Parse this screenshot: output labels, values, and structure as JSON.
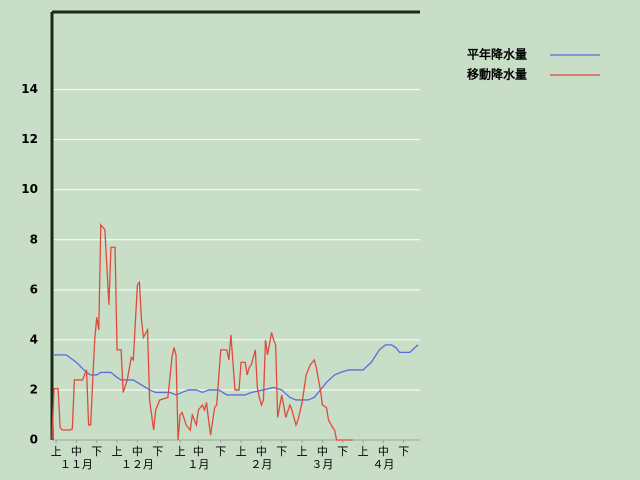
{
  "chart_data": {
    "type": "line",
    "series": [
      {
        "name": "平年降水量",
        "color": "#5a6be0",
        "x": [
          1,
          7,
          12,
          17,
          19,
          22,
          24,
          29,
          32,
          34,
          40,
          44,
          48,
          51,
          58,
          61,
          64,
          67,
          71,
          74,
          77,
          82,
          86,
          95,
          98,
          104,
          109,
          113,
          117,
          120,
          126,
          129,
          132,
          135,
          139,
          142,
          146,
          153,
          157,
          161,
          164,
          167,
          169,
          171,
          176,
          180
        ],
        "values": [
          3.4,
          3.4,
          3.1,
          2.7,
          2.6,
          2.6,
          2.7,
          2.7,
          2.5,
          2.4,
          2.4,
          2.2,
          2.0,
          1.9,
          1.9,
          1.8,
          1.9,
          2.0,
          2.0,
          1.9,
          2.0,
          2.0,
          1.8,
          1.8,
          1.9,
          2.0,
          2.1,
          2.0,
          1.7,
          1.6,
          1.6,
          1.7,
          2.0,
          2.3,
          2.6,
          2.7,
          2.8,
          2.8,
          3.1,
          3.6,
          3.8,
          3.8,
          3.7,
          3.5,
          3.5,
          3.8
        ]
      },
      {
        "name": "移動降水量",
        "color": "#e04a3c",
        "x": [
          0,
          1,
          3,
          4,
          5,
          9,
          10,
          11,
          15,
          17,
          18,
          19,
          21,
          22,
          23,
          24,
          26,
          28,
          29,
          31,
          32,
          34,
          35,
          37,
          39,
          40,
          42,
          43,
          44,
          45,
          47,
          48,
          50,
          51,
          53,
          57,
          59,
          60,
          61,
          62,
          63,
          64,
          66,
          68,
          69,
          71,
          72,
          74,
          75,
          76,
          77,
          78,
          80,
          81,
          83,
          86,
          87,
          88,
          90,
          92,
          93,
          95,
          96,
          97,
          98,
          100,
          101,
          102,
          103,
          104,
          105,
          106,
          108,
          109,
          110,
          111,
          113,
          115,
          117,
          118,
          120,
          121,
          123,
          125,
          127,
          129,
          130,
          132,
          133,
          135,
          136,
          138,
          139,
          140,
          148
        ],
        "values": [
          0,
          2.05,
          2.05,
          0.5,
          0.4,
          0.4,
          0.45,
          2.4,
          2.4,
          2.8,
          0.6,
          0.6,
          4.0,
          4.9,
          4.4,
          8.6,
          8.4,
          5.4,
          7.7,
          7.7,
          3.6,
          3.6,
          1.9,
          2.4,
          3.3,
          3.2,
          6.2,
          6.3,
          4.8,
          4.1,
          4.4,
          1.6,
          0.4,
          1.2,
          1.6,
          1.7,
          3.3,
          3.7,
          3.4,
          0,
          1.0,
          1.1,
          0.6,
          0.4,
          1.0,
          0.6,
          1.2,
          1.4,
          1.2,
          1.5,
          0.8,
          0.2,
          1.3,
          1.4,
          3.6,
          3.6,
          3.2,
          4.2,
          2.0,
          2.0,
          3.1,
          3.1,
          2.6,
          2.9,
          3.0,
          3.6,
          2.1,
          1.7,
          1.4,
          1.6,
          4.0,
          3.4,
          4.3,
          4.0,
          3.8,
          0.9,
          1.8,
          0.9,
          1.4,
          1.2,
          0.6,
          0.8,
          1.5,
          2.6,
          3.0,
          3.2,
          2.9,
          2.0,
          1.4,
          1.3,
          0.8,
          0.5,
          0.4,
          0,
          0
        ]
      }
    ],
    "xlim": [
      0,
      181
    ],
    "xticks": [
      {
        "value": 2,
        "label": "上"
      },
      {
        "value": 12,
        "label": "中"
      },
      {
        "value": 22,
        "label": "下"
      },
      {
        "value": 32,
        "label": "上"
      },
      {
        "value": 42,
        "label": "中"
      },
      {
        "value": 52,
        "label": "下"
      },
      {
        "value": 63,
        "label": "上"
      },
      {
        "value": 72,
        "label": "中"
      },
      {
        "value": 83,
        "label": "下"
      },
      {
        "value": 93,
        "label": "上"
      },
      {
        "value": 103,
        "label": "中"
      },
      {
        "value": 113,
        "label": "下"
      },
      {
        "value": 123,
        "label": "上"
      },
      {
        "value": 133,
        "label": "中"
      },
      {
        "value": 143,
        "label": "下"
      },
      {
        "value": 153,
        "label": "上"
      },
      {
        "value": 163,
        "label": "中"
      },
      {
        "value": 173,
        "label": "下"
      }
    ],
    "months": [
      {
        "value": 12,
        "label": "１１月"
      },
      {
        "value": 42,
        "label": "１２月"
      },
      {
        "value": 72,
        "label": "１月"
      },
      {
        "value": 103,
        "label": "２月"
      },
      {
        "value": 133,
        "label": "３月"
      },
      {
        "value": 163,
        "label": "４月"
      }
    ],
    "ylim": [
      0,
      17.1
    ],
    "yticks": [
      0,
      2,
      4,
      6,
      8,
      10,
      12,
      14
    ],
    "grid": true
  }
}
